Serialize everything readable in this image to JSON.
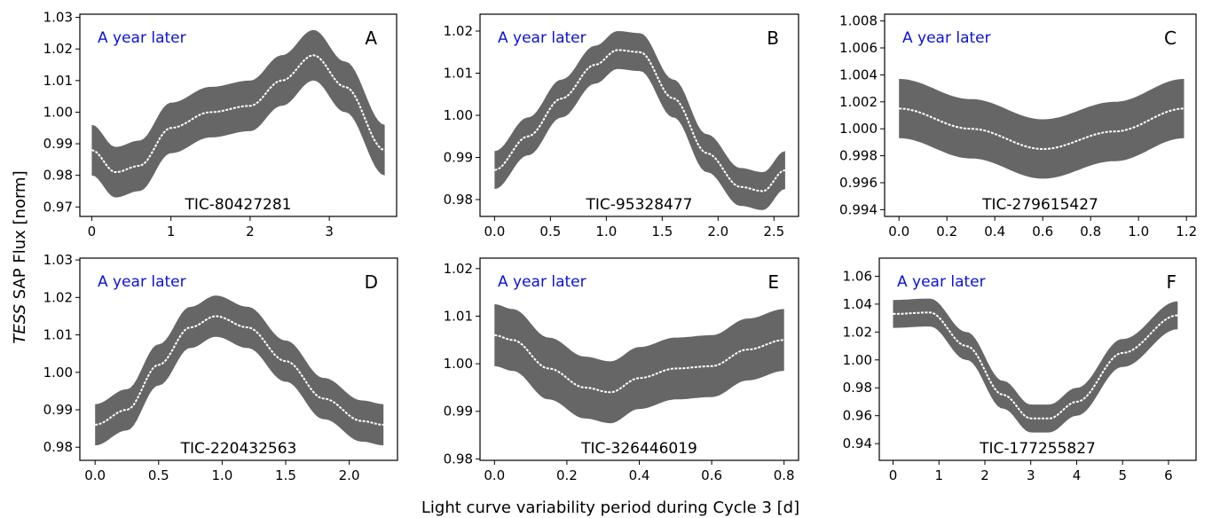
{
  "figure": {
    "xlabel": "Light curve variability period during Cycle 3 [d]",
    "ylabel_italic": "TESS",
    "ylabel_rest": " SAP Flux [norm]"
  },
  "chart_data": [
    {
      "type": "scatter",
      "panel_label": "A",
      "annotation": "A year later",
      "tic_label": "TIC-80427281",
      "xlim": [
        -0.15,
        3.85
      ],
      "ylim": [
        0.967,
        1.031
      ],
      "x_ticks": [
        0,
        1,
        2,
        3
      ],
      "x_tick_labels": [
        "0",
        "1",
        "2",
        "3"
      ],
      "y_ticks": [
        0.97,
        0.98,
        0.99,
        1.0,
        1.01,
        1.02,
        1.03
      ],
      "y_tick_labels": [
        "0.97",
        "0.98",
        "0.99",
        "1.00",
        "1.01",
        "1.02",
        "1.03"
      ],
      "trend_x": [
        0,
        0.3,
        0.6,
        1.0,
        1.5,
        2.0,
        2.4,
        2.8,
        3.2,
        3.7
      ],
      "trend_y": [
        0.988,
        0.981,
        0.983,
        0.995,
        1.0,
        1.002,
        1.01,
        1.018,
        1.008,
        0.988
      ],
      "scatter_halfwidth": 0.008
    },
    {
      "type": "scatter",
      "panel_label": "B",
      "annotation": "A year later",
      "tic_label": "TIC-95328477",
      "xlim": [
        -0.13,
        2.72
      ],
      "ylim": [
        0.976,
        1.024
      ],
      "x_ticks": [
        0,
        0.5,
        1.0,
        1.5,
        2.0,
        2.5
      ],
      "x_tick_labels": [
        "0.0",
        "0.5",
        "1.0",
        "1.5",
        "2.0",
        "2.5"
      ],
      "y_ticks": [
        0.98,
        0.99,
        1.0,
        1.01,
        1.02
      ],
      "y_tick_labels": [
        "0.98",
        "0.99",
        "1.00",
        "1.01",
        "1.02"
      ],
      "trend_x": [
        0,
        0.3,
        0.6,
        0.9,
        1.1,
        1.3,
        1.6,
        1.9,
        2.2,
        2.4,
        2.6
      ],
      "trend_y": [
        0.987,
        0.995,
        1.004,
        1.012,
        1.0155,
        1.015,
        1.004,
        0.991,
        0.983,
        0.982,
        0.987
      ],
      "scatter_halfwidth": 0.0045
    },
    {
      "type": "scatter",
      "panel_label": "C",
      "annotation": "A year later",
      "tic_label": "TIC-279615427",
      "xlim": [
        -0.06,
        1.24
      ],
      "ylim": [
        0.9935,
        1.0085
      ],
      "x_ticks": [
        0,
        0.2,
        0.4,
        0.6,
        0.8,
        1.0,
        1.2
      ],
      "x_tick_labels": [
        "0.0",
        "0.2",
        "0.4",
        "0.6",
        "0.8",
        "1.0",
        "1.2"
      ],
      "y_ticks": [
        0.994,
        0.996,
        0.998,
        1.0,
        1.002,
        1.004,
        1.006,
        1.008
      ],
      "y_tick_labels": [
        "0.994",
        "0.996",
        "0.998",
        "1.000",
        "1.002",
        "1.004",
        "1.006",
        "1.008"
      ],
      "trend_x": [
        0,
        0.3,
        0.6,
        0.9,
        1.19
      ],
      "trend_y": [
        1.0015,
        1.0,
        0.9985,
        0.9998,
        1.0015
      ],
      "scatter_halfwidth": 0.0022
    },
    {
      "type": "scatter",
      "panel_label": "D",
      "annotation": "A year later",
      "tic_label": "TIC-220432563",
      "xlim": [
        -0.12,
        2.38
      ],
      "ylim": [
        0.9765,
        1.0305
      ],
      "x_ticks": [
        0,
        0.5,
        1.0,
        1.5,
        2.0
      ],
      "x_tick_labels": [
        "0.0",
        "0.5",
        "1.0",
        "1.5",
        "2.0"
      ],
      "y_ticks": [
        0.98,
        0.99,
        1.0,
        1.01,
        1.02,
        1.03
      ],
      "y_tick_labels": [
        "0.98",
        "0.99",
        "1.00",
        "1.01",
        "1.02",
        "1.03"
      ],
      "trend_x": [
        0,
        0.25,
        0.5,
        0.75,
        0.95,
        1.2,
        1.5,
        1.8,
        2.1,
        2.27
      ],
      "trend_y": [
        0.986,
        0.99,
        1.002,
        1.012,
        1.015,
        1.012,
        1.003,
        0.993,
        0.987,
        0.986
      ],
      "scatter_halfwidth": 0.0055
    },
    {
      "type": "scatter",
      "panel_label": "E",
      "annotation": "A year later",
      "tic_label": "TIC-326446019",
      "xlim": [
        -0.04,
        0.84
      ],
      "ylim": [
        0.9797,
        1.0222
      ],
      "x_ticks": [
        0,
        0.2,
        0.4,
        0.6,
        0.8
      ],
      "x_tick_labels": [
        "0.0",
        "0.2",
        "0.4",
        "0.6",
        "0.8"
      ],
      "y_ticks": [
        0.98,
        0.99,
        1.0,
        1.01,
        1.02
      ],
      "y_tick_labels": [
        "0.98",
        "0.99",
        "1.00",
        "1.01",
        "1.02"
      ],
      "trend_x": [
        0,
        0.05,
        0.15,
        0.25,
        0.32,
        0.4,
        0.5,
        0.6,
        0.7,
        0.8
      ],
      "trend_y": [
        1.006,
        1.005,
        0.999,
        0.995,
        0.994,
        0.997,
        0.999,
        0.9995,
        1.003,
        1.005
      ],
      "scatter_halfwidth": 0.0065
    },
    {
      "type": "scatter",
      "panel_label": "F",
      "annotation": "A year later",
      "tic_label": "TIC-177255827",
      "xlim": [
        -0.3,
        6.6
      ],
      "ylim": [
        0.928,
        1.073
      ],
      "x_ticks": [
        0,
        1,
        2,
        3,
        4,
        5,
        6
      ],
      "x_tick_labels": [
        "0",
        "1",
        "2",
        "3",
        "4",
        "5",
        "6"
      ],
      "y_ticks": [
        0.94,
        0.96,
        0.98,
        1.0,
        1.02,
        1.04,
        1.06
      ],
      "y_tick_labels": [
        "0.94",
        "0.96",
        "0.98",
        "1.00",
        "1.02",
        "1.04",
        "1.06"
      ],
      "trend_x": [
        0,
        0.8,
        1.6,
        2.4,
        3.0,
        3.4,
        4.0,
        5.0,
        6.2
      ],
      "trend_y": [
        1.033,
        1.034,
        1.01,
        0.975,
        0.958,
        0.958,
        0.97,
        1.005,
        1.032
      ],
      "scatter_halfwidth": 0.01
    }
  ]
}
